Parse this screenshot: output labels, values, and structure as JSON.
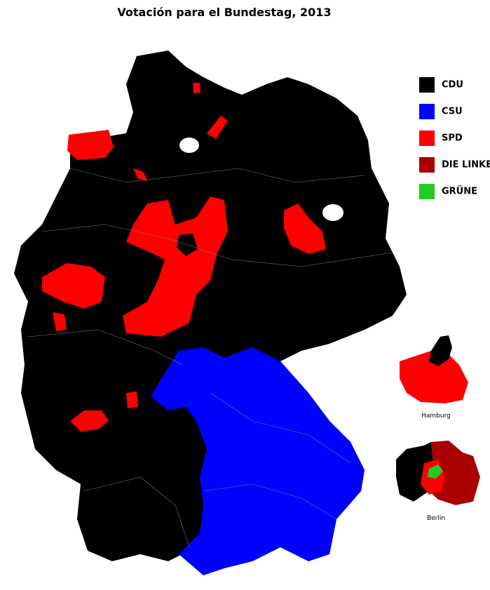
{
  "title": "Votación para el Bundestag, 2013",
  "legend": [
    {
      "label": "CDU",
      "color": "#000000"
    },
    {
      "label": "CSU",
      "color": "#0000ff"
    },
    {
      "label": "SPD",
      "color": "#ff0000"
    },
    {
      "label": "DIE LINKE.",
      "color": "#aa0000"
    },
    {
      "label": "GRÜNE",
      "color": "#22cc22"
    }
  ],
  "insets": [
    {
      "label": "Hamburg"
    },
    {
      "label": "Berlin"
    }
  ]
}
